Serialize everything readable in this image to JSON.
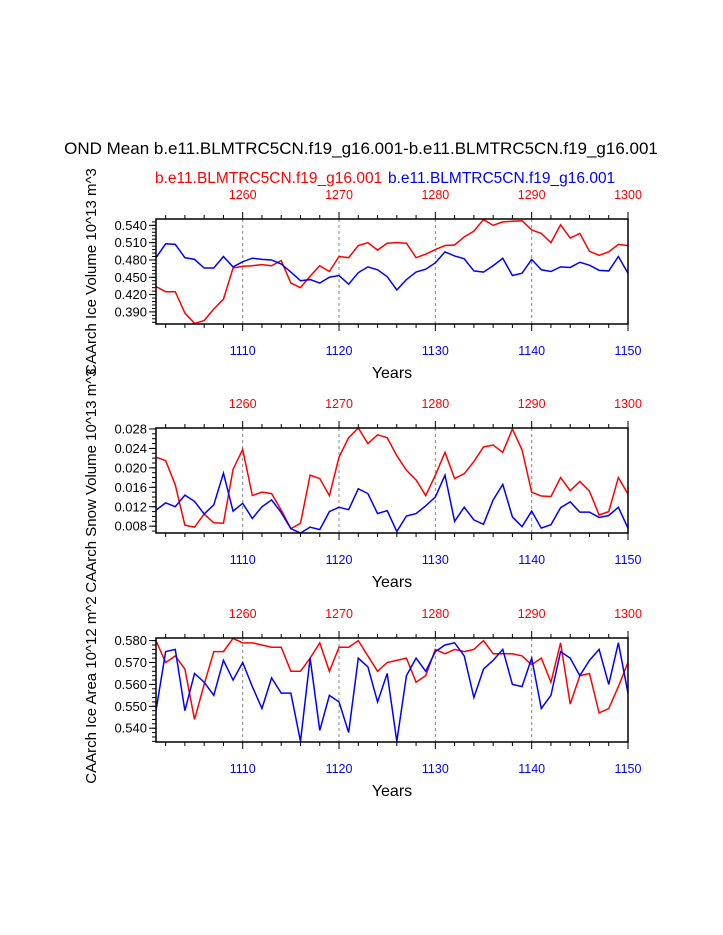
{
  "title": "OND Mean b.e11.BLMTRC5CN.f19_g16.001-b.e11.BLMTRC5CN.f19_g16.001",
  "subtitle_left": "b.e11.BLMTRC5CN.f19_g16.001",
  "subtitle_right": "b.e11.BLMTRC5CN.f19_g16.001",
  "colors": {
    "series_red": "#ff0000",
    "series_blue": "#0000ff",
    "grid": "#888888"
  },
  "chart_data": [
    {
      "type": "line",
      "ylabel": "CAArch Ice Volume 10^13 m^3",
      "xlabel": "Years",
      "x": [
        1101,
        1102,
        1103,
        1104,
        1105,
        1106,
        1107,
        1108,
        1109,
        1110,
        1111,
        1112,
        1113,
        1114,
        1115,
        1116,
        1117,
        1118,
        1119,
        1120,
        1121,
        1122,
        1123,
        1124,
        1125,
        1126,
        1127,
        1128,
        1129,
        1130,
        1131,
        1132,
        1133,
        1134,
        1135,
        1136,
        1137,
        1138,
        1139,
        1140,
        1141,
        1142,
        1143,
        1144,
        1145,
        1146,
        1147,
        1148,
        1149,
        1150
      ],
      "xlim": [
        1101,
        1150
      ],
      "xticks_bottom": [
        "1110",
        "1120",
        "1130",
        "1140",
        "1150"
      ],
      "xticks_top": [
        "1260",
        "1270",
        "1280",
        "1290",
        "1300"
      ],
      "ylim": [
        0.369,
        0.551
      ],
      "yticks": [
        "0.390",
        "0.420",
        "0.450",
        "0.480",
        "0.510",
        "0.540"
      ],
      "grid": "dashed vertical at major x ticks",
      "series": [
        {
          "color": "red",
          "axis": "top",
          "values": [
            0.434,
            0.425,
            0.425,
            0.388,
            0.37,
            0.375,
            0.395,
            0.412,
            0.466,
            0.469,
            0.47,
            0.472,
            0.47,
            0.479,
            0.44,
            0.432,
            0.452,
            0.47,
            0.46,
            0.486,
            0.484,
            0.505,
            0.51,
            0.497,
            0.509,
            0.51,
            0.509,
            0.484,
            0.49,
            0.498,
            0.505,
            0.506,
            0.52,
            0.53,
            0.55,
            0.54,
            0.546,
            0.547,
            0.548,
            0.532,
            0.526,
            0.51,
            0.541,
            0.518,
            0.526,
            0.495,
            0.488,
            0.494,
            0.507,
            0.505
          ]
        },
        {
          "color": "blue",
          "axis": "bottom",
          "values": [
            0.484,
            0.508,
            0.507,
            0.484,
            0.481,
            0.466,
            0.466,
            0.486,
            0.468,
            0.477,
            0.483,
            0.481,
            0.48,
            0.473,
            0.459,
            0.444,
            0.446,
            0.44,
            0.45,
            0.453,
            0.438,
            0.458,
            0.468,
            0.463,
            0.451,
            0.428,
            0.446,
            0.459,
            0.464,
            0.475,
            0.494,
            0.487,
            0.482,
            0.461,
            0.459,
            0.47,
            0.483,
            0.453,
            0.457,
            0.481,
            0.463,
            0.46,
            0.468,
            0.467,
            0.476,
            0.471,
            0.462,
            0.461,
            0.486,
            0.457
          ]
        }
      ]
    },
    {
      "type": "line",
      "ylabel": "CAArch Snow Volume 10^13 m^3",
      "xlabel": "Years",
      "x": [
        1101,
        1102,
        1103,
        1104,
        1105,
        1106,
        1107,
        1108,
        1109,
        1110,
        1111,
        1112,
        1113,
        1114,
        1115,
        1116,
        1117,
        1118,
        1119,
        1120,
        1121,
        1122,
        1123,
        1124,
        1125,
        1126,
        1127,
        1128,
        1129,
        1130,
        1131,
        1132,
        1133,
        1134,
        1135,
        1136,
        1137,
        1138,
        1139,
        1140,
        1141,
        1142,
        1143,
        1144,
        1145,
        1146,
        1147,
        1148,
        1149,
        1150
      ],
      "xlim": [
        1101,
        1150
      ],
      "xticks_bottom": [
        "1110",
        "1120",
        "1130",
        "1140",
        "1150"
      ],
      "xticks_top": [
        "1260",
        "1270",
        "1280",
        "1290",
        "1300"
      ],
      "ylim": [
        0.0066,
        0.0282
      ],
      "yticks": [
        "0.008",
        "0.012",
        "0.016",
        "0.020",
        "0.024",
        "0.028"
      ],
      "grid": "dashed vertical at major x ticks",
      "series": [
        {
          "color": "red",
          "axis": "top",
          "values": [
            0.0222,
            0.0215,
            0.0165,
            0.0082,
            0.0078,
            0.0105,
            0.0087,
            0.0086,
            0.0197,
            0.0238,
            0.0143,
            0.015,
            0.0147,
            0.0113,
            0.0075,
            0.0086,
            0.0185,
            0.0178,
            0.0143,
            0.0222,
            0.0262,
            0.0282,
            0.025,
            0.0268,
            0.0262,
            0.0225,
            0.0195,
            0.0175,
            0.0143,
            0.0185,
            0.0232,
            0.0178,
            0.0188,
            0.0213,
            0.0243,
            0.0247,
            0.0232,
            0.028,
            0.0237,
            0.015,
            0.0142,
            0.0141,
            0.018,
            0.0153,
            0.0172,
            0.0152,
            0.0103,
            0.011,
            0.018,
            0.0146
          ]
        },
        {
          "color": "blue",
          "axis": "bottom",
          "values": [
            0.0113,
            0.0128,
            0.012,
            0.0144,
            0.0131,
            0.0105,
            0.0124,
            0.0189,
            0.0111,
            0.0127,
            0.0096,
            0.012,
            0.0134,
            0.0108,
            0.0075,
            0.0066,
            0.0078,
            0.0073,
            0.011,
            0.0119,
            0.0114,
            0.0157,
            0.0147,
            0.0106,
            0.0112,
            0.0069,
            0.0101,
            0.0106,
            0.0122,
            0.014,
            0.0185,
            0.009,
            0.0119,
            0.0093,
            0.0084,
            0.0134,
            0.0166,
            0.0099,
            0.0079,
            0.0111,
            0.0076,
            0.0083,
            0.0118,
            0.013,
            0.0109,
            0.0109,
            0.0098,
            0.0102,
            0.0119,
            0.0076
          ]
        }
      ]
    },
    {
      "type": "line",
      "ylabel": "CAArch Ice Area 10^12 m^2",
      "xlabel": "Years",
      "x": [
        1101,
        1102,
        1103,
        1104,
        1105,
        1106,
        1107,
        1108,
        1109,
        1110,
        1111,
        1112,
        1113,
        1114,
        1115,
        1116,
        1117,
        1118,
        1119,
        1120,
        1121,
        1122,
        1123,
        1124,
        1125,
        1126,
        1127,
        1128,
        1129,
        1130,
        1131,
        1132,
        1133,
        1134,
        1135,
        1136,
        1137,
        1138,
        1139,
        1140,
        1141,
        1142,
        1143,
        1144,
        1145,
        1146,
        1147,
        1148,
        1149,
        1150
      ],
      "xlim": [
        1101,
        1150
      ],
      "xticks_bottom": [
        "1110",
        "1120",
        "1130",
        "1140",
        "1150"
      ],
      "xticks_top": [
        "1260",
        "1270",
        "1280",
        "1290",
        "1300"
      ],
      "ylim": [
        0.5337,
        0.5812
      ],
      "yticks": [
        "0.540",
        "0.550",
        "0.560",
        "0.570",
        "0.580"
      ],
      "grid": "dashed vertical at major x ticks",
      "series": [
        {
          "color": "red",
          "axis": "top",
          "values": [
            0.58,
            0.57,
            0.573,
            0.567,
            0.544,
            0.56,
            0.575,
            0.575,
            0.581,
            0.579,
            0.579,
            0.578,
            0.577,
            0.577,
            0.566,
            0.566,
            0.572,
            0.579,
            0.566,
            0.577,
            0.577,
            0.58,
            0.573,
            0.566,
            0.57,
            0.571,
            0.572,
            0.561,
            0.564,
            0.576,
            0.574,
            0.576,
            0.575,
            0.576,
            0.58,
            0.574,
            0.574,
            0.574,
            0.573,
            0.569,
            0.572,
            0.561,
            0.579,
            0.551,
            0.564,
            0.565,
            0.547,
            0.549,
            0.559,
            0.57
          ]
        },
        {
          "color": "blue",
          "axis": "bottom",
          "values": [
            0.548,
            0.575,
            0.576,
            0.548,
            0.565,
            0.561,
            0.555,
            0.571,
            0.562,
            0.57,
            0.559,
            0.549,
            0.563,
            0.556,
            0.556,
            0.534,
            0.572,
            0.539,
            0.555,
            0.552,
            0.538,
            0.572,
            0.568,
            0.552,
            0.565,
            0.534,
            0.564,
            0.572,
            0.566,
            0.575,
            0.578,
            0.579,
            0.573,
            0.554,
            0.567,
            0.571,
            0.576,
            0.56,
            0.559,
            0.572,
            0.549,
            0.555,
            0.575,
            0.572,
            0.564,
            0.571,
            0.576,
            0.56,
            0.579,
            0.556
          ]
        }
      ]
    }
  ]
}
